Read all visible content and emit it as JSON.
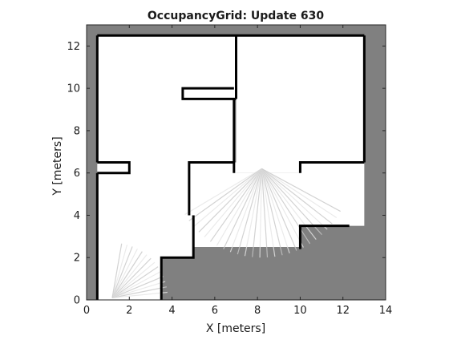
{
  "chart_data": {
    "type": "heatmap",
    "title": "OccupancyGrid: Update 630",
    "xlabel": "X [meters]",
    "ylabel": "Y [meters]",
    "xlim": [
      0,
      14
    ],
    "ylim": [
      0,
      13
    ],
    "xticks": [
      0,
      2,
      4,
      6,
      8,
      10,
      12,
      14
    ],
    "yticks": [
      0,
      2,
      4,
      6,
      8,
      10,
      12
    ],
    "grid": false,
    "colors": {
      "unknown": "#808080",
      "free": "#ffffff",
      "occupied": "#000000",
      "axes": "#262626"
    },
    "free_regions": [
      {
        "name": "upper-left-room",
        "polygon": [
          [
            0.5,
            12.5
          ],
          [
            7,
            12.5
          ],
          [
            7,
            9.5
          ],
          [
            4.5,
            9.5
          ],
          [
            4.5,
            10
          ],
          [
            6.9,
            10
          ],
          [
            6.9,
            6.5
          ],
          [
            5.5,
            6.5
          ],
          [
            5.5,
            4
          ],
          [
            5,
            4
          ],
          [
            5,
            2
          ],
          [
            3.5,
            2
          ],
          [
            3.5,
            0
          ],
          [
            0.5,
            0
          ],
          [
            0.5,
            6.5
          ],
          [
            2,
            6.5
          ],
          [
            2,
            6
          ],
          [
            0.5,
            6
          ]
        ]
      },
      {
        "name": "upper-right-room",
        "polygon": [
          [
            7,
            12.5
          ],
          [
            13,
            12.5
          ],
          [
            13,
            6.5
          ],
          [
            10,
            6.5
          ],
          [
            10,
            6
          ],
          [
            7,
            6
          ]
        ]
      },
      {
        "name": "left-corridor",
        "polygon": [
          [
            0.5,
            6
          ],
          [
            5,
            6
          ],
          [
            5,
            2
          ],
          [
            3.5,
            2
          ],
          [
            3.5,
            0
          ],
          [
            0.5,
            0
          ]
        ]
      },
      {
        "name": "center-hall",
        "polygon": [
          [
            4.8,
            6.5
          ],
          [
            7,
            6.5
          ],
          [
            7,
            6
          ],
          [
            10,
            6
          ],
          [
            10,
            6.5
          ],
          [
            13,
            6.5
          ],
          [
            13,
            3.5
          ],
          [
            10,
            3.5
          ],
          [
            10,
            2.5
          ],
          [
            5,
            2.5
          ],
          [
            5,
            4
          ]
        ]
      }
    ],
    "walls": [
      {
        "name": "outer-top-left",
        "points": [
          [
            0.5,
            12.5
          ],
          [
            7,
            12.5
          ]
        ]
      },
      {
        "name": "outer-top-right",
        "points": [
          [
            7,
            12.5
          ],
          [
            13,
            12.5
          ]
        ]
      },
      {
        "name": "outer-left",
        "points": [
          [
            0.5,
            12.5
          ],
          [
            0.5,
            6.5
          ]
        ]
      },
      {
        "name": "outer-right",
        "points": [
          [
            13,
            12.5
          ],
          [
            13,
            6.5
          ]
        ]
      },
      {
        "name": "room-divider",
        "points": [
          [
            7,
            12.5
          ],
          [
            7,
            9.5
          ]
        ]
      },
      {
        "name": "divider-stub",
        "points": [
          [
            7,
            9.5
          ],
          [
            4.5,
            9.5
          ],
          [
            4.5,
            10
          ],
          [
            6.9,
            10
          ]
        ]
      },
      {
        "name": "divider-lower",
        "points": [
          [
            6.9,
            9.5
          ],
          [
            6.9,
            6.5
          ]
        ]
      },
      {
        "name": "left-ledge",
        "points": [
          [
            0.5,
            6.5
          ],
          [
            2,
            6.5
          ],
          [
            2,
            6
          ],
          [
            0.5,
            6
          ]
        ]
      },
      {
        "name": "left-lower",
        "points": [
          [
            0.5,
            6
          ],
          [
            0.5,
            4
          ],
          [
            0.5,
            2.8
          ],
          [
            0.5,
            0
          ]
        ]
      },
      {
        "name": "center-post",
        "points": [
          [
            4.8,
            4
          ],
          [
            4.8,
            6.5
          ],
          [
            6.9,
            6.5
          ],
          [
            6.9,
            6
          ]
        ]
      },
      {
        "name": "right-ledge",
        "points": [
          [
            10,
            6
          ],
          [
            10,
            6.5
          ],
          [
            13,
            6.5
          ]
        ]
      },
      {
        "name": "lower-step",
        "points": [
          [
            5,
            4
          ],
          [
            5,
            2
          ],
          [
            3.5,
            2
          ],
          [
            3.5,
            0
          ]
        ]
      },
      {
        "name": "lower-right-step",
        "points": [
          [
            10,
            2.4
          ],
          [
            10,
            3.5
          ],
          [
            12.3,
            3.5
          ]
        ]
      }
    ]
  }
}
